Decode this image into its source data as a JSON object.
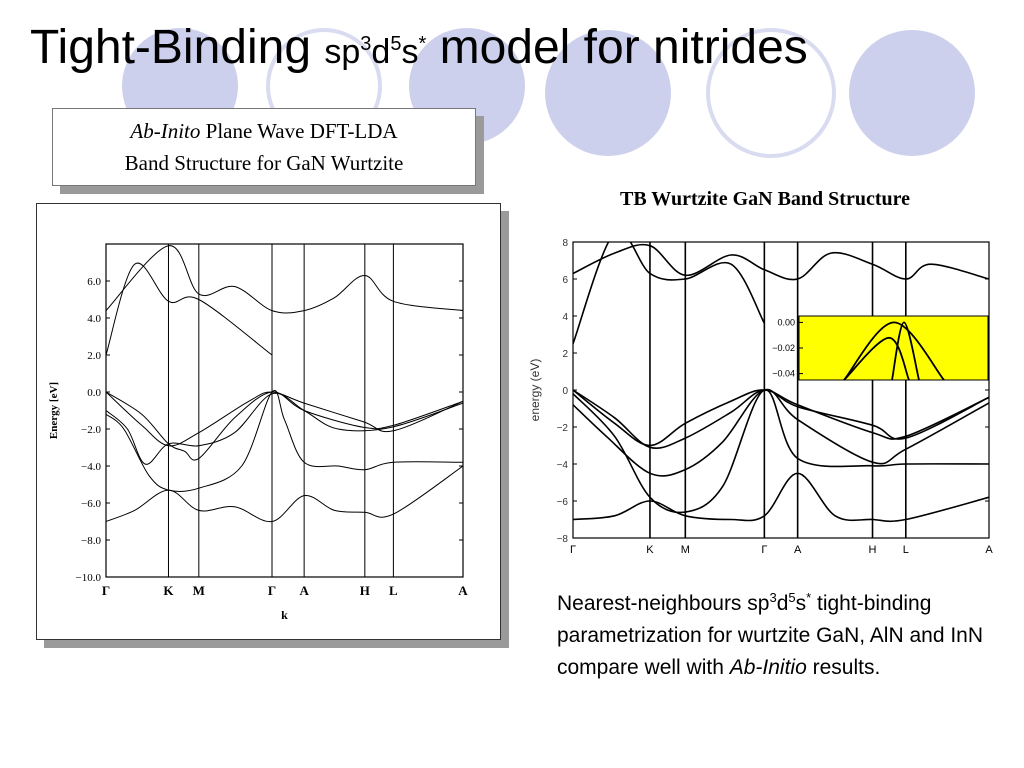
{
  "slide": {
    "title_main": "Tight-Binding ",
    "title_sp": "sp",
    "title_sup1": "3",
    "title_d": "d",
    "title_sup2": "5",
    "title_s": "s",
    "title_sup3": "*",
    "title_rest": " model for nitrides",
    "decor_colors": {
      "circle_fill": "#cdd0ec",
      "circle_ring": "#d9dbf0"
    }
  },
  "caption": {
    "italic": "Ab-Inito",
    "line1_rest": " Plane Wave DFT-LDA",
    "line2": "Band Structure for GaN Wurtzite"
  },
  "right_title": "TB Wurtzite GaN Band Structure",
  "description": {
    "part1": "Nearest-neighbours sp",
    "sup1": "3",
    "d": "d",
    "sup2": "5",
    "s": "s",
    "sup3": "*",
    "part2": " tight-binding parametrization for wurtzite GaN, AlN and InN compare well with ",
    "italic": "Ab-Initio",
    "part3": " results."
  },
  "chart_data": [
    {
      "type": "line",
      "title": "",
      "xlabel": "k",
      "ylabel": "Energy [eV]",
      "ylim": [
        -10,
        8
      ],
      "yticks": [
        "6.0",
        "4.0",
        "2.0",
        "0.0",
        "−2.0",
        "−4.0",
        "−6.0",
        "−8.0",
        "−10.0"
      ],
      "ytick_values": [
        6,
        4,
        2,
        0,
        -2,
        -4,
        -6,
        -8,
        -10
      ],
      "kpoints": [
        "Γ",
        "K",
        "M",
        "Γ",
        "A",
        "H",
        "L",
        "A"
      ],
      "kpoint_pos": [
        0,
        0.175,
        0.26,
        0.465,
        0.555,
        0.725,
        0.805,
        1.0
      ],
      "series": [
        {
          "x": [
            0,
            0.08,
            0.175,
            0.26,
            0.465
          ],
          "y": [
            2.0,
            6.9,
            4.9,
            5.0,
            2.0
          ]
        },
        {
          "x": [
            0,
            0.175,
            0.26,
            0.36,
            0.465,
            0.555,
            0.64,
            0.725,
            0.805,
            1.0
          ],
          "y": [
            4.4,
            7.9,
            5.3,
            5.7,
            4.4,
            4.4,
            5.1,
            6.3,
            4.9,
            4.4
          ]
        },
        {
          "x": [
            0,
            0.1,
            0.175,
            0.22,
            0.26,
            0.36,
            0.465,
            0.555,
            0.72,
            0.805,
            1.0
          ],
          "y": [
            0.0,
            -1.2,
            -2.8,
            -3.2,
            -3.6,
            -1.4,
            0.0,
            -1.0,
            -1.9,
            -1.8,
            -0.5
          ]
        },
        {
          "x": [
            0,
            0.1,
            0.175,
            0.26,
            0.4,
            0.465,
            0.555,
            0.72,
            0.805,
            1.0
          ],
          "y": [
            0.0,
            -1.8,
            -2.9,
            -2.2,
            -0.5,
            0.0,
            -0.6,
            -1.6,
            -2.1,
            -0.5
          ]
        },
        {
          "x": [
            0,
            0.06,
            0.11,
            0.175,
            0.26,
            0.36,
            0.465,
            0.555,
            0.65,
            0.8,
            1.0
          ],
          "y": [
            -1.0,
            -2.0,
            -3.9,
            -2.8,
            -2.9,
            -2.2,
            -0.1,
            -1.0,
            -2.0,
            -1.9,
            -0.6
          ]
        },
        {
          "x": [
            0,
            0.05,
            0.12,
            0.175,
            0.26,
            0.38,
            0.465,
            0.5,
            0.555,
            0.65,
            0.725,
            0.805,
            1.0
          ],
          "y": [
            -1.2,
            -2.0,
            -4.5,
            -5.3,
            -5.2,
            -4.0,
            0.0,
            -1.5,
            -3.8,
            -4.0,
            -4.2,
            -3.8,
            -3.8
          ]
        },
        {
          "x": [
            0,
            0.08,
            0.175,
            0.26,
            0.36,
            0.465,
            0.555,
            0.64,
            0.725,
            0.805,
            1.0
          ],
          "y": [
            -7.0,
            -6.4,
            -5.3,
            -6.4,
            -6.2,
            -7.0,
            -5.6,
            -6.4,
            -6.5,
            -6.6,
            -4.0
          ]
        }
      ]
    },
    {
      "type": "line",
      "title": "TB Wurtzite GaN Band Structure",
      "xlabel": "",
      "ylabel": "energy (eV)",
      "ylim": [
        -8,
        8
      ],
      "yticks": [
        "8",
        "6",
        "4",
        "2",
        "0",
        "−2",
        "−4",
        "−6",
        "−8"
      ],
      "ytick_values": [
        8,
        6,
        4,
        2,
        0,
        -2,
        -4,
        -6,
        -8
      ],
      "kpoints": [
        "Γ",
        "K",
        "M",
        "Γ",
        "A",
        "H",
        "L",
        "A"
      ],
      "kpoint_pos": [
        0,
        0.185,
        0.27,
        0.46,
        0.54,
        0.72,
        0.8,
        1.0
      ],
      "series": [
        {
          "x": [
            0,
            0.1,
            0.185,
            0.27,
            0.38,
            0.46
          ],
          "y": [
            2.5,
            8.5,
            6.3,
            6.0,
            6.8,
            3.6
          ]
        },
        {
          "x": [
            0,
            0.1,
            0.185,
            0.27,
            0.38,
            0.46,
            0.54,
            0.62,
            0.72,
            0.8,
            0.86,
            1.0
          ],
          "y": [
            6.3,
            7.4,
            7.8,
            6.2,
            7.3,
            6.5,
            6.0,
            7.4,
            6.8,
            6.0,
            6.8,
            6.0
          ]
        },
        {
          "x": [
            0,
            0.1,
            0.185,
            0.27,
            0.38,
            0.46,
            0.54,
            0.72,
            0.8,
            1.0
          ],
          "y": [
            0.0,
            -1.8,
            -3.0,
            -1.8,
            -0.6,
            0.0,
            -0.8,
            -2.3,
            -2.5,
            -0.4
          ]
        },
        {
          "x": [
            0,
            0.1,
            0.185,
            0.27,
            0.38,
            0.46,
            0.54,
            0.72,
            0.8,
            1.0
          ],
          "y": [
            0.0,
            -1.5,
            -3.1,
            -2.6,
            -1.2,
            0.0,
            -0.9,
            -1.9,
            -2.6,
            -0.4
          ]
        },
        {
          "x": [
            0,
            0.08,
            0.185,
            0.27,
            0.36,
            0.46,
            0.54,
            0.72,
            0.8,
            1.0
          ],
          "y": [
            -0.8,
            -2.5,
            -4.5,
            -4.3,
            -2.8,
            0.0,
            -1.6,
            -3.9,
            -3.2,
            -0.7
          ]
        },
        {
          "x": [
            0,
            0.1,
            0.185,
            0.27,
            0.36,
            0.46,
            0.54,
            0.72,
            0.8,
            1.0
          ],
          "y": [
            -0.2,
            -2.5,
            -5.8,
            -6.6,
            -5.2,
            0.0,
            -3.7,
            -4.1,
            -4.0,
            -4.0
          ]
        },
        {
          "x": [
            0,
            0.1,
            0.185,
            0.27,
            0.38,
            0.46,
            0.54,
            0.63,
            0.72,
            0.8,
            1.0
          ],
          "y": [
            -7.0,
            -6.8,
            -6.0,
            -6.8,
            -7.0,
            -6.8,
            -4.5,
            -6.8,
            -7.0,
            -7.0,
            -5.8
          ]
        }
      ],
      "inset": {
        "yticks": [
          "0.00",
          "−0.02",
          "−0.04"
        ],
        "ytick_values": [
          0,
          -0.02,
          -0.04
        ],
        "ylim": [
          -0.045,
          0.005
        ],
        "background": "#ffff00",
        "series": [
          {
            "x": [
              0.0,
              0.5,
              1.0
            ],
            "y": [
              -0.045,
              0.0,
              -0.045
            ]
          },
          {
            "x": [
              0.0,
              0.45,
              0.65
            ],
            "y": [
              -0.045,
              -0.012,
              -0.045
            ]
          },
          {
            "x": [
              0.48,
              0.6,
              0.75
            ],
            "y": [
              -0.045,
              0.0,
              -0.045
            ]
          }
        ]
      }
    }
  ]
}
